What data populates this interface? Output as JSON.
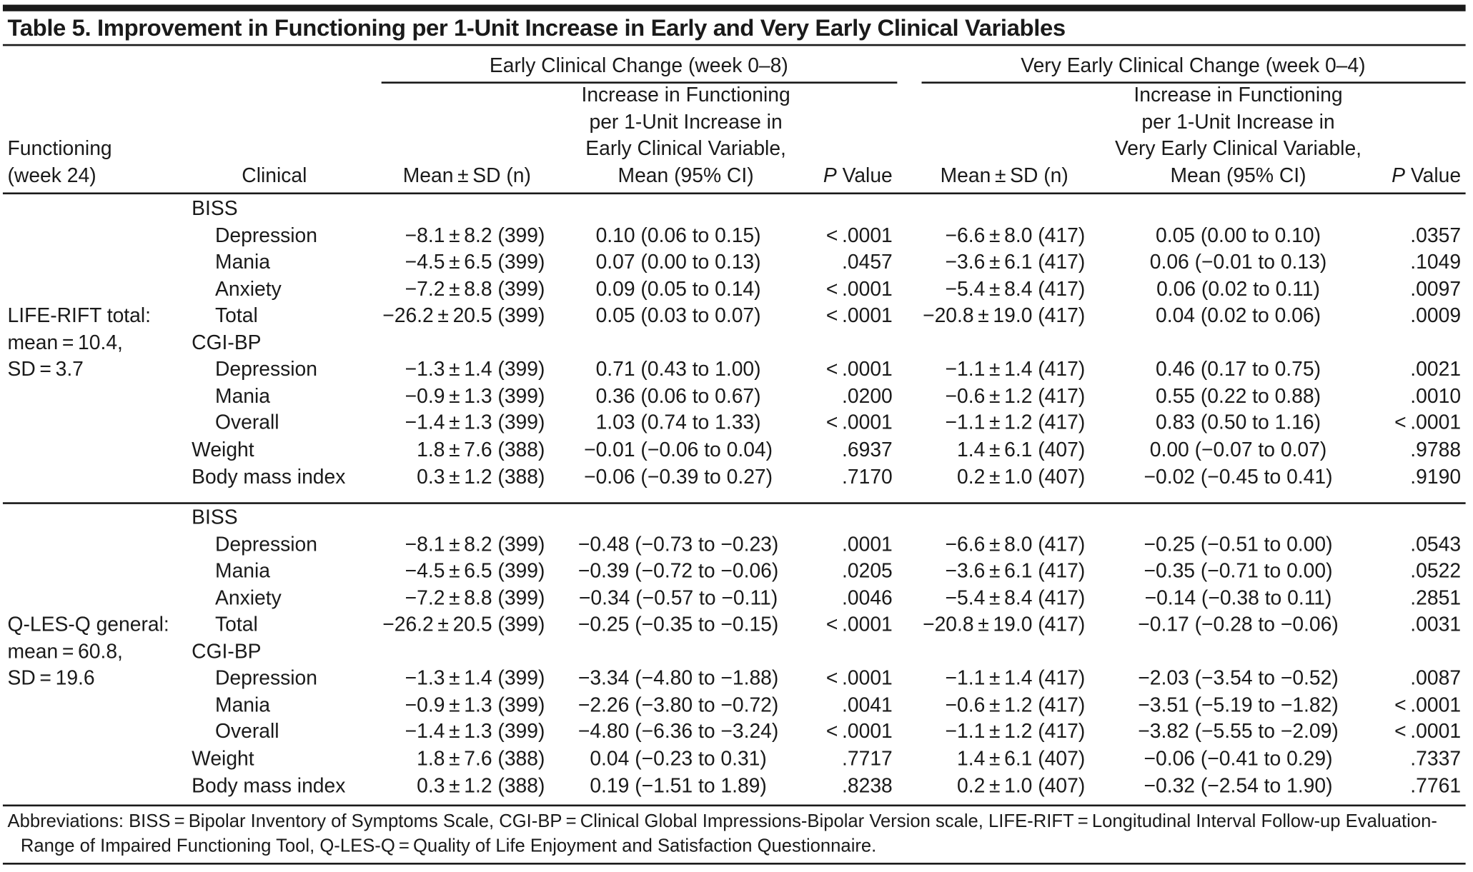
{
  "title": "Table 5. Improvement in Functioning per 1-Unit Increase in Early and Very Early Clinical Variables",
  "column_groups": [
    "Early Clinical Change (week 0–8)",
    "Very Early Clinical Change (week 0–4)"
  ],
  "headers": [
    [
      "Functioning",
      "(week 24)"
    ],
    [
      "Clinical"
    ],
    [
      "Mean ± SD (n)"
    ],
    [
      "Increase in Functioning",
      "per 1-Unit Increase in",
      "Early Clinical Variable,",
      "Mean (95% CI)"
    ],
    [
      "P Value"
    ],
    [
      "Mean ± SD (n)"
    ],
    [
      "Increase in Functioning",
      "per 1-Unit Increase in",
      "Very Early Clinical Variable,",
      "Mean (95% CI)"
    ],
    [
      "P Value"
    ]
  ],
  "sections": [
    {
      "label": [
        "LIFE-RIFT total:",
        "mean = 10.4,",
        "SD = 3.7"
      ],
      "rows": [
        {
          "group": "BISS",
          "rows": [
            [
              "Depression",
              "−8.1 ± 8.2 (399)",
              "0.10 (0.06 to 0.15)",
              "< .0001",
              "−6.6 ± 8.0 (417)",
              "0.05 (0.00 to 0.10)",
              ".0357"
            ],
            [
              "Mania",
              "−4.5 ± 6.5 (399)",
              "0.07 (0.00 to 0.13)",
              ".0457",
              "−3.6 ± 6.1 (417)",
              "0.06 (−0.01 to 0.13)",
              ".1049"
            ],
            [
              "Anxiety",
              "−7.2 ± 8.8 (399)",
              "0.09 (0.05 to 0.14)",
              "< .0001",
              "−5.4 ± 8.4 (417)",
              "0.06 (0.02 to 0.11)",
              ".0097"
            ],
            [
              "Total",
              "−26.2 ± 20.5 (399)",
              "0.05 (0.03 to 0.07)",
              "< .0001",
              "−20.8 ± 19.0 (417)",
              "0.04 (0.02 to 0.06)",
              ".0009"
            ]
          ]
        },
        {
          "group": "CGI-BP",
          "rows": [
            [
              "Depression",
              "−1.3 ± 1.4 (399)",
              "0.71 (0.43 to 1.00)",
              "< .0001",
              "−1.1 ± 1.4 (417)",
              "0.46 (0.17 to 0.75)",
              ".0021"
            ],
            [
              "Mania",
              "−0.9 ± 1.3 (399)",
              "0.36 (0.06 to 0.67)",
              ".0200",
              "−0.6 ± 1.2 (417)",
              "0.55 (0.22 to 0.88)",
              ".0010"
            ],
            [
              "Overall",
              "−1.4 ± 1.3 (399)",
              "1.03 (0.74 to 1.33)",
              "< .0001",
              "−1.1 ± 1.2 (417)",
              "0.83 (0.50 to 1.16)",
              "< .0001"
            ]
          ]
        },
        [
          "Weight",
          "1.8 ± 7.6 (388)",
          "−0.01 (−0.06 to 0.04)",
          ".6937",
          "1.4 ± 6.1 (407)",
          "0.00 (−0.07 to 0.07)",
          ".9788"
        ],
        [
          "Body mass index",
          "0.3 ± 1.2 (388)",
          "−0.06 (−0.39 to 0.27)",
          ".7170",
          "0.2 ± 1.0 (407)",
          "−0.02 (−0.45 to 0.41)",
          ".9190"
        ]
      ]
    },
    {
      "label": [
        "Q-LES-Q general:",
        "mean = 60.8,",
        "SD = 19.6"
      ],
      "rows": [
        {
          "group": "BISS",
          "rows": [
            [
              "Depression",
              "−8.1 ± 8.2 (399)",
              "−0.48 (−0.73 to −0.23)",
              ".0001",
              "−6.6 ± 8.0 (417)",
              "−0.25 (−0.51 to 0.00)",
              ".0543"
            ],
            [
              "Mania",
              "−4.5 ± 6.5 (399)",
              "−0.39 (−0.72 to −0.06)",
              ".0205",
              "−3.6 ± 6.1 (417)",
              "−0.35 (−0.71 to 0.00)",
              ".0522"
            ],
            [
              "Anxiety",
              "−7.2 ± 8.8 (399)",
              "−0.34 (−0.57 to −0.11)",
              ".0046",
              "−5.4 ± 8.4 (417)",
              "−0.14 (−0.38 to 0.11)",
              ".2851"
            ],
            [
              "Total",
              "−26.2 ± 20.5 (399)",
              "−0.25 (−0.35 to −0.15)",
              "< .0001",
              "−20.8 ± 19.0 (417)",
              "−0.17 (−0.28 to −0.06)",
              ".0031"
            ]
          ]
        },
        {
          "group": "CGI-BP",
          "rows": [
            [
              "Depression",
              "−1.3 ± 1.4 (399)",
              "−3.34 (−4.80 to −1.88)",
              "< .0001",
              "−1.1 ± 1.4 (417)",
              "−2.03 (−3.54 to −0.52)",
              ".0087"
            ],
            [
              "Mania",
              "−0.9 ± 1.3 (399)",
              "−2.26 (−3.80 to −0.72)",
              ".0041",
              "−0.6 ± 1.2 (417)",
              "−3.51 (−5.19 to −1.82)",
              "< .0001"
            ],
            [
              "Overall",
              "−1.4 ± 1.3 (399)",
              "−4.80 (−6.36 to −3.24)",
              "< .0001",
              "−1.1 ± 1.2 (417)",
              "−3.82 (−5.55 to −2.09)",
              "< .0001"
            ]
          ]
        },
        [
          "Weight",
          "1.8 ± 7.6 (388)",
          "0.04 (−0.23 to 0.31)",
          ".7717",
          "1.4 ± 6.1 (407)",
          "−0.06 (−0.41 to 0.29)",
          ".7337"
        ],
        [
          "Body mass index",
          "0.3 ± 1.2 (388)",
          "0.19 (−1.51 to 1.89)",
          ".8238",
          "0.2 ± 1.0 (407)",
          "−0.32 (−2.54 to 1.90)",
          ".7761"
        ]
      ]
    }
  ],
  "footnote": "Abbreviations: BISS = Bipolar Inventory of Symptoms Scale, CGI-BP = Clinical Global Impressions-Bipolar Version scale, LIFE-RIFT = Longitudinal Interval Follow-up Evaluation-Range of Impaired Functioning Tool, Q-LES-Q = Quality of Life Enjoyment and Satisfaction Questionnaire."
}
